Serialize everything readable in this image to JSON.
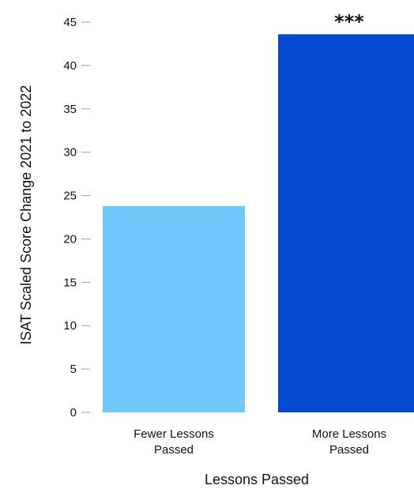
{
  "chart_data": {
    "type": "bar",
    "categories": [
      "Fewer Lessons Passed",
      "More Lessons Passed"
    ],
    "category_lines": [
      [
        "Fewer Lessons",
        "Passed"
      ],
      [
        "More Lessons",
        "Passed"
      ]
    ],
    "values": [
      23.8,
      43.6
    ],
    "colors": [
      "#72C8FD",
      "#0549D1"
    ],
    "annotations": [
      "",
      "***"
    ],
    "xlabel": "Lessons Passed",
    "ylabel": "ISAT Scaled Score Change 2021 to 2022",
    "ylim": [
      0,
      45
    ],
    "yticks": [
      0,
      5,
      10,
      15,
      20,
      25,
      30,
      35,
      40,
      45
    ],
    "grid": false
  }
}
